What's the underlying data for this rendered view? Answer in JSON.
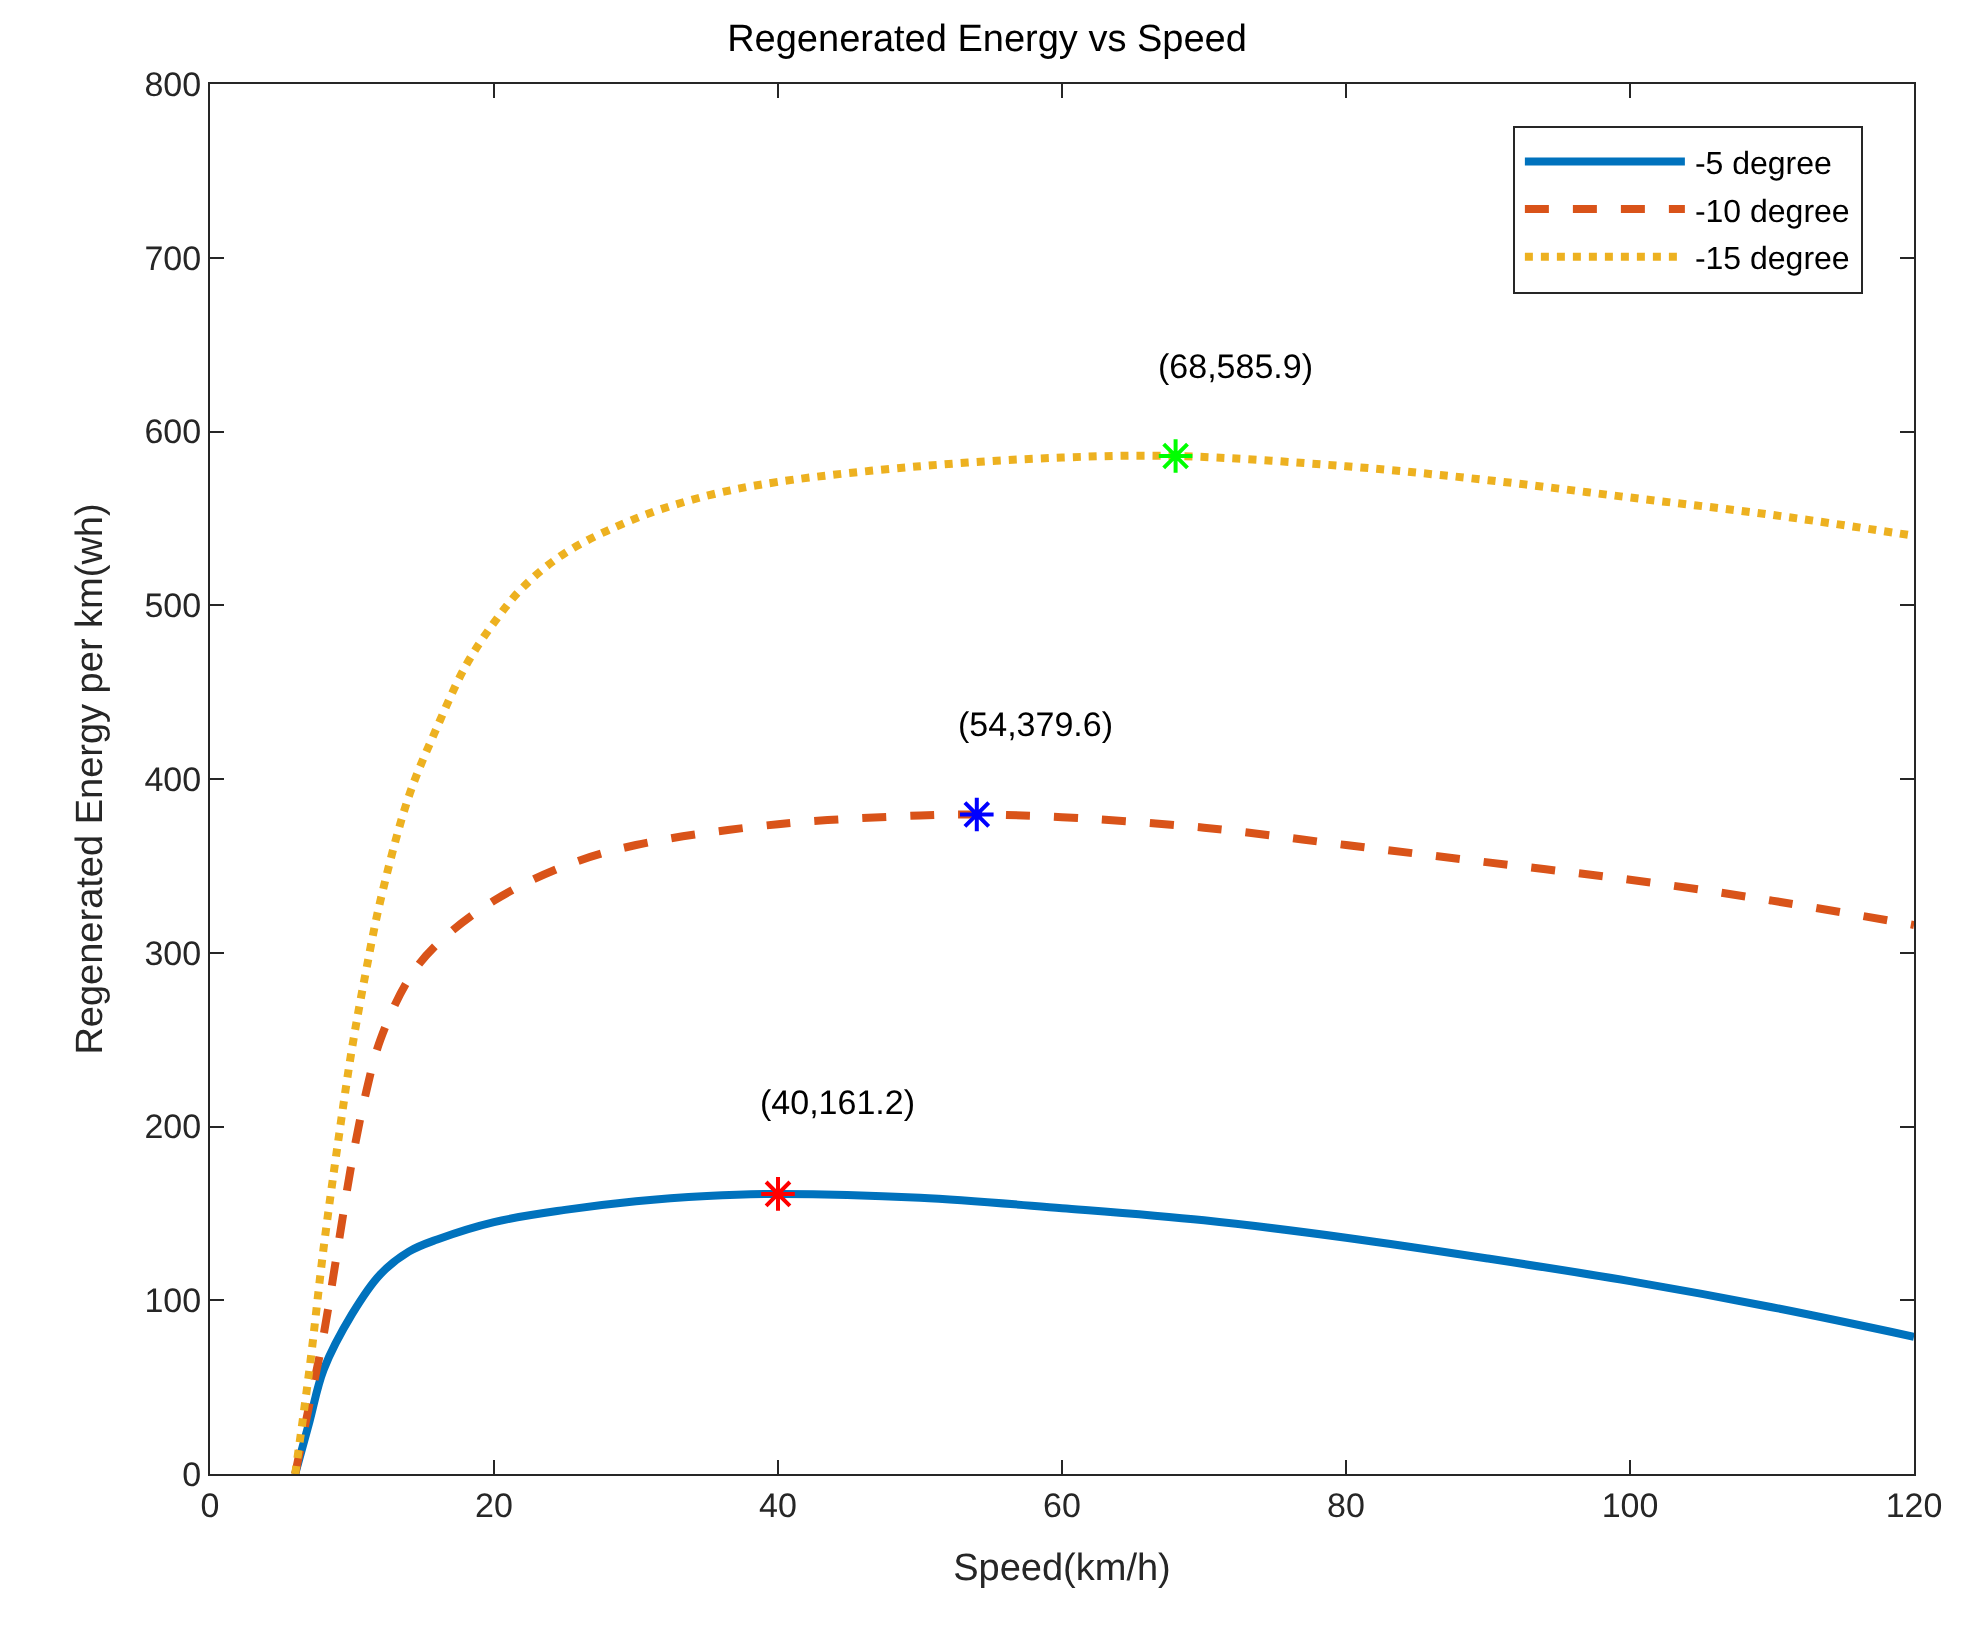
{
  "chart_data": {
    "type": "line",
    "title": "Regenerated Energy vs Speed",
    "xlabel": "Speed(km/h)",
    "ylabel": "Regenerated Energy per km(wh)",
    "xlim": [
      0,
      120
    ],
    "xticks": [
      0,
      20,
      40,
      60,
      80,
      100,
      120
    ],
    "ylim": [
      0,
      800
    ],
    "yticks": [
      0,
      100,
      200,
      300,
      400,
      500,
      600,
      700,
      800
    ],
    "legend": "top right",
    "series": [
      {
        "name": "-5 degree",
        "color": "#0072bd",
        "line_style": "solid",
        "x": [
          6,
          7,
          8,
          10,
          12,
          14,
          16,
          20,
          25,
          30,
          35,
          40,
          50,
          60,
          70,
          80,
          90,
          100,
          110,
          120
        ],
        "values": [
          0,
          30,
          60,
          92,
          115,
          128,
          135,
          145,
          152,
          157,
          160,
          161.2,
          159,
          153,
          146,
          136,
          124,
          111,
          96,
          79
        ]
      },
      {
        "name": "-10 degree",
        "color": "#d95319",
        "line_style": "dashed",
        "x": [
          6,
          7,
          8,
          9,
          10,
          11,
          12,
          14,
          16,
          20,
          25,
          30,
          40,
          50,
          54,
          60,
          70,
          80,
          90,
          100,
          110,
          120
        ],
        "values": [
          0,
          40,
          80,
          130,
          180,
          220,
          250,
          285,
          305,
          330,
          350,
          362,
          374,
          379,
          379.6,
          378,
          372,
          362,
          352,
          342,
          330,
          316
        ]
      },
      {
        "name": "-15 degree",
        "color": "#edb120",
        "line_style": "dotted",
        "x": [
          6,
          7,
          8,
          9,
          10,
          11,
          12,
          14,
          16,
          18,
          20,
          22,
          25,
          30,
          35,
          40,
          50,
          60,
          68,
          80,
          90,
          100,
          110,
          120
        ],
        "values": [
          0,
          60,
          130,
          190,
          245,
          290,
          330,
          390,
          430,
          465,
          490,
          510,
          530,
          550,
          563,
          571,
          580,
          585,
          585.9,
          580,
          572,
          562,
          552,
          540
        ]
      },
      {
        "type": "scatter",
        "marker": "cross",
        "color": "#ff0000",
        "x": [
          40
        ],
        "values": [
          161.2
        ]
      },
      {
        "type": "scatter",
        "marker": "cross",
        "color": "#0000ff",
        "x": [
          54
        ],
        "values": [
          379.6
        ]
      },
      {
        "type": "scatter",
        "marker": "cross",
        "color": "#00ff00",
        "x": [
          68
        ],
        "values": [
          585.9
        ]
      }
    ],
    "annotations": [
      {
        "text": "(40,161.2)",
        "x": 40,
        "y": 161.2
      },
      {
        "text": "(54,379.6)",
        "x": 54,
        "y": 379.6
      },
      {
        "text": "(68,585.9)",
        "x": 68,
        "y": 585.9
      }
    ]
  }
}
